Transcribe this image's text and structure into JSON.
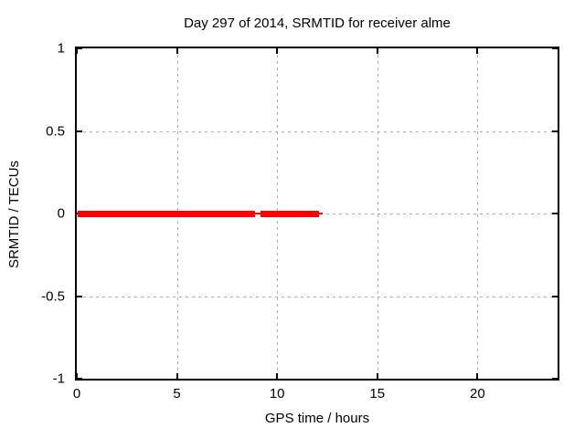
{
  "chart_data": {
    "type": "line",
    "title": "Day 297 of 2014, SRMTID for receiver alme",
    "xlabel": "GPS time / hours",
    "ylabel": "SRMTID / TECUs",
    "xlim": [
      0,
      24
    ],
    "ylim": [
      -1,
      1
    ],
    "grid": true,
    "legend": false,
    "xticks": [
      {
        "value": 0,
        "label": "0"
      },
      {
        "value": 5,
        "label": "5"
      },
      {
        "value": 10,
        "label": "10"
      },
      {
        "value": 15,
        "label": "15"
      },
      {
        "value": 20,
        "label": "20"
      }
    ],
    "yticks": [
      {
        "value": 1,
        "label": "1"
      },
      {
        "value": 0.5,
        "label": "0.5"
      },
      {
        "value": 0,
        "label": "0"
      },
      {
        "value": -0.5,
        "label": "-0.5"
      },
      {
        "value": -1,
        "label": "-1"
      }
    ],
    "colors": {
      "series": "#ff0000",
      "grid": "#ababab",
      "axis": "#000000",
      "background": "#ffffff",
      "text": "#000000"
    },
    "series": [
      {
        "name": "SRMTID",
        "color": "#ff0000",
        "y_value": 0,
        "segments": [
          {
            "x_start": 0.05,
            "x_end": 8.9,
            "style": "thick"
          },
          {
            "x_start": 8.9,
            "x_end": 9.17,
            "style": "thin"
          },
          {
            "x_start": 9.17,
            "x_end": 12.08,
            "style": "thick"
          },
          {
            "x_start": 12.08,
            "x_end": 12.28,
            "style": "thin"
          }
        ]
      }
    ]
  }
}
